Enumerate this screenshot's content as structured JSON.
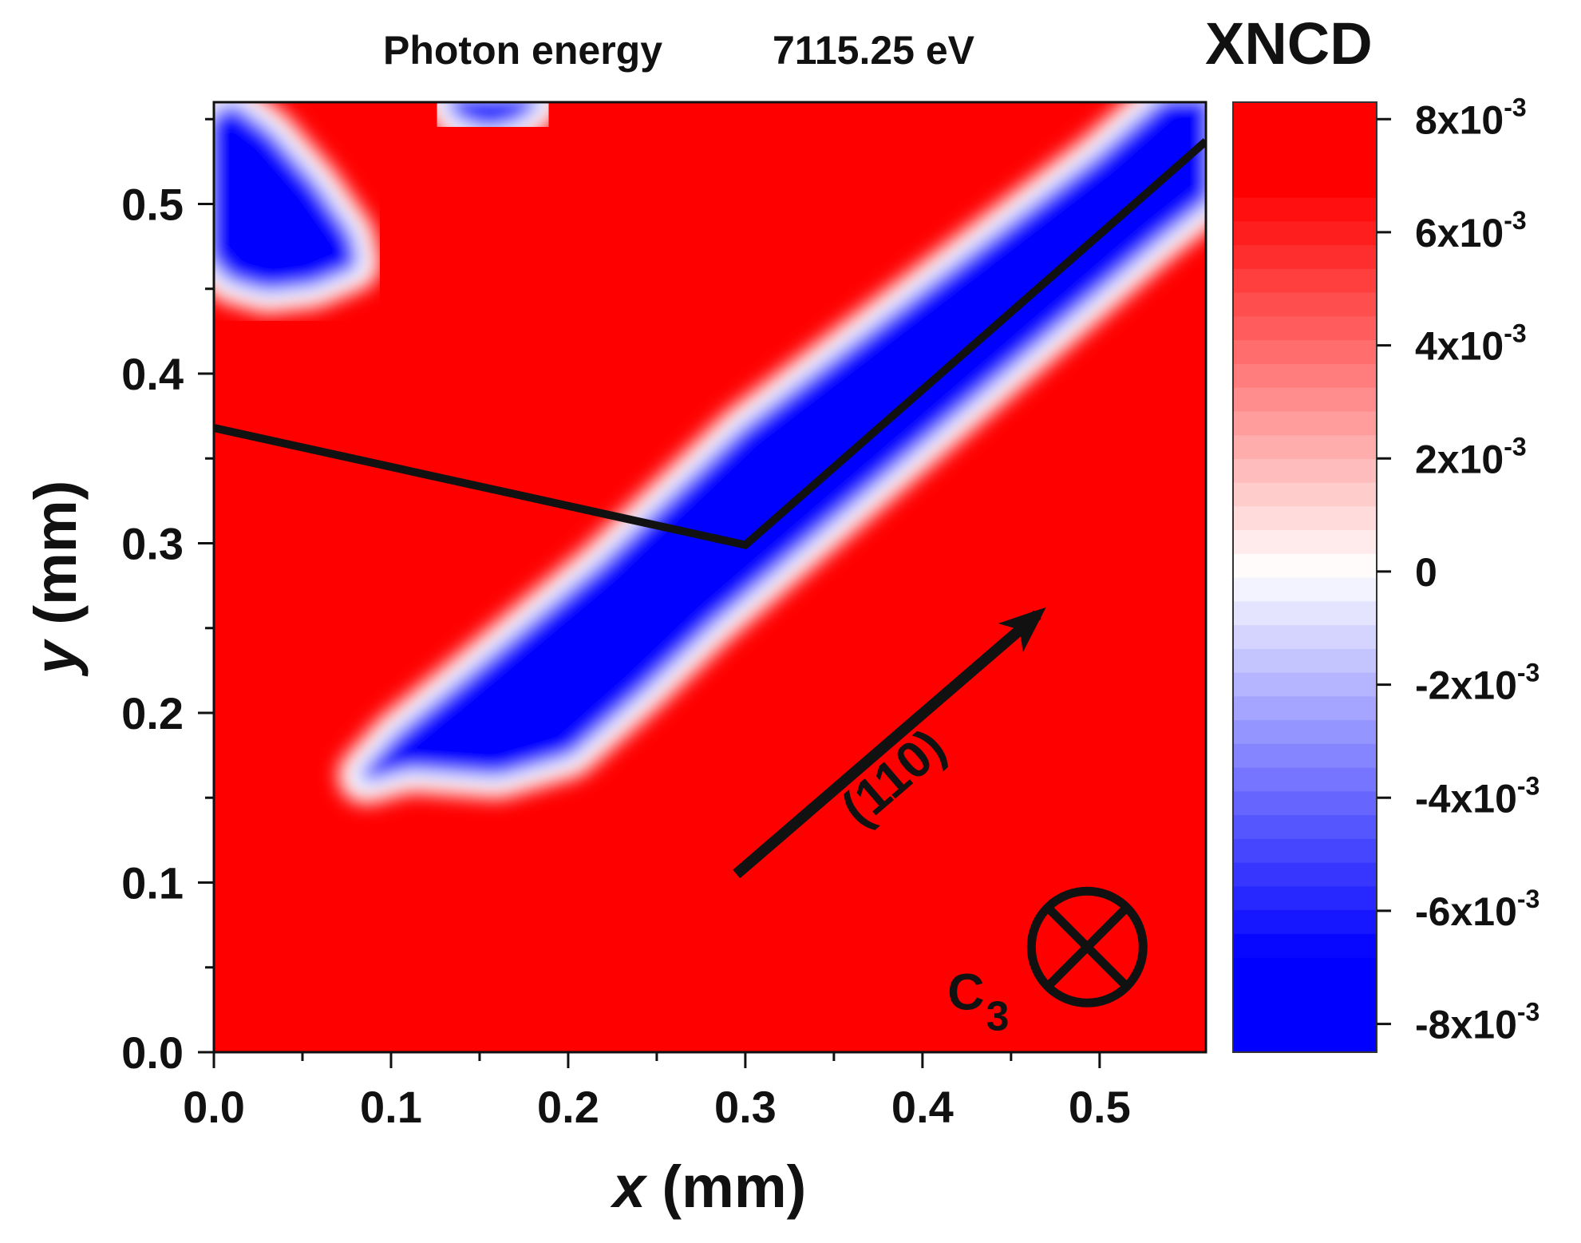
{
  "chart_data": {
    "type": "heatmap",
    "title": "Photon energy",
    "title_value": "7115.25 eV",
    "xlabel_var": "x",
    "xlabel_unit": " (mm)",
    "ylabel_var": "y",
    "ylabel_unit": " (mm)",
    "xlim": [
      0.0,
      0.56
    ],
    "ylim": [
      0.0,
      0.56
    ],
    "x_ticks": [
      {
        "value": 0.0,
        "label": "0.0"
      },
      {
        "value": 0.1,
        "label": "0.1"
      },
      {
        "value": 0.2,
        "label": "0.2"
      },
      {
        "value": 0.3,
        "label": "0.3"
      },
      {
        "value": 0.4,
        "label": "0.4"
      },
      {
        "value": 0.5,
        "label": "0.5"
      }
    ],
    "y_ticks": [
      {
        "value": 0.0,
        "label": "0.0"
      },
      {
        "value": 0.1,
        "label": "0.1"
      },
      {
        "value": 0.2,
        "label": "0.2"
      },
      {
        "value": 0.3,
        "label": "0.3"
      },
      {
        "value": 0.4,
        "label": "0.4"
      },
      {
        "value": 0.5,
        "label": "0.5"
      }
    ],
    "colorbar": {
      "title": "XNCD",
      "range": [
        -0.0085,
        0.0083
      ],
      "ticks": [
        {
          "value": 0.008,
          "mantissa": "8x10",
          "exponent": "-3"
        },
        {
          "value": 0.006,
          "mantissa": "6x10",
          "exponent": "-3"
        },
        {
          "value": 0.004,
          "mantissa": "4x10",
          "exponent": "-3"
        },
        {
          "value": 0.002,
          "mantissa": "2x10",
          "exponent": "-3"
        },
        {
          "value": 0.0,
          "mantissa": "0",
          "exponent": ""
        },
        {
          "value": -0.002,
          "mantissa": "-2x10",
          "exponent": "-3"
        },
        {
          "value": -0.004,
          "mantissa": "-4x10",
          "exponent": "-3"
        },
        {
          "value": -0.006,
          "mantissa": "-6x10",
          "exponent": "-3"
        },
        {
          "value": -0.008,
          "mantissa": "-8x10",
          "exponent": "-3"
        }
      ],
      "colors": {
        "positive": "#ff0000",
        "zero": "#ffffff",
        "negative": "#0000ff"
      }
    },
    "regions_negative_xncd": [
      {
        "name": "main-diagonal-band",
        "points": [
          [
            0.086,
            0.163
          ],
          [
            0.11,
            0.17
          ],
          [
            0.16,
            0.166
          ],
          [
            0.2,
            0.178
          ],
          [
            0.24,
            0.215
          ],
          [
            0.28,
            0.255
          ],
          [
            0.33,
            0.3
          ],
          [
            0.38,
            0.345
          ],
          [
            0.43,
            0.39
          ],
          [
            0.48,
            0.435
          ],
          [
            0.53,
            0.48
          ],
          [
            0.56,
            0.505
          ],
          [
            0.56,
            0.56
          ],
          [
            0.538,
            0.56
          ],
          [
            0.5,
            0.525
          ],
          [
            0.45,
            0.485
          ],
          [
            0.4,
            0.445
          ],
          [
            0.35,
            0.405
          ],
          [
            0.3,
            0.365
          ],
          [
            0.26,
            0.325
          ],
          [
            0.22,
            0.285
          ],
          [
            0.18,
            0.25
          ],
          [
            0.14,
            0.215
          ],
          [
            0.105,
            0.185
          ]
        ]
      },
      {
        "name": "top-left-blob",
        "points": [
          [
            0.0,
            0.548
          ],
          [
            0.01,
            0.556
          ],
          [
            0.03,
            0.54
          ],
          [
            0.055,
            0.51
          ],
          [
            0.075,
            0.48
          ],
          [
            0.078,
            0.465
          ],
          [
            0.055,
            0.455
          ],
          [
            0.03,
            0.452
          ],
          [
            0.01,
            0.458
          ],
          [
            0.0,
            0.47
          ]
        ]
      },
      {
        "name": "top-edge-blob",
        "points": [
          [
            0.135,
            0.56
          ],
          [
            0.14,
            0.553
          ],
          [
            0.155,
            0.548
          ],
          [
            0.17,
            0.552
          ],
          [
            0.18,
            0.56
          ]
        ]
      }
    ],
    "boundary_line": {
      "points": [
        [
          0.0,
          0.368
        ],
        [
          0.3,
          0.299
        ],
        [
          0.56,
          0.537
        ]
      ],
      "color": "#111111"
    },
    "direction_arrow": {
      "start": [
        0.295,
        0.105
      ],
      "end": [
        0.465,
        0.258
      ],
      "label": "(110)",
      "color": "#111111"
    },
    "axis_symbol": {
      "label": "C",
      "subscript": "3",
      "position": [
        0.493,
        0.062
      ],
      "color": "#111111"
    }
  }
}
